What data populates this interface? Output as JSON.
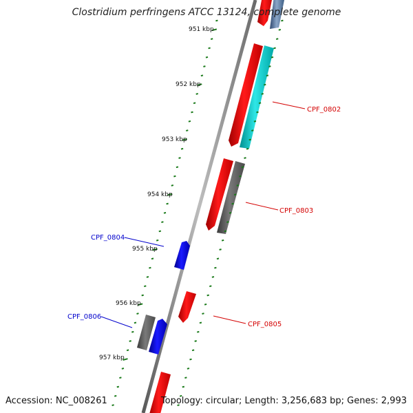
{
  "title": "Clostridium perfringens ATCC 13124, complete genome",
  "accession": "Accession: NC_008261",
  "topology": "Topology: circular; Length: 3,256,683 bp; Genes: 2,993",
  "kbp_labels": [
    "951 kbp",
    "952 kbp",
    "953 kbp",
    "954 kbp",
    "955 kbp",
    "956 kbp",
    "957 kbp"
  ],
  "genes": [
    {
      "name": "CPF_0802",
      "color": "#d40000"
    },
    {
      "name": "CPF_0803",
      "color": "#d40000"
    },
    {
      "name": "CPF_0804",
      "color": "#0000cc"
    },
    {
      "name": "CPF_0805",
      "color": "#d40000"
    },
    {
      "name": "CPF_0806",
      "color": "#0000cc"
    }
  ],
  "colors": {
    "backbone": "#8c8c8c",
    "tick": "#1a7a1a",
    "cds_forward": "#ff0000",
    "cds_reverse": "#0000ff",
    "rna": "#00c8c8",
    "gene": "#696969"
  }
}
